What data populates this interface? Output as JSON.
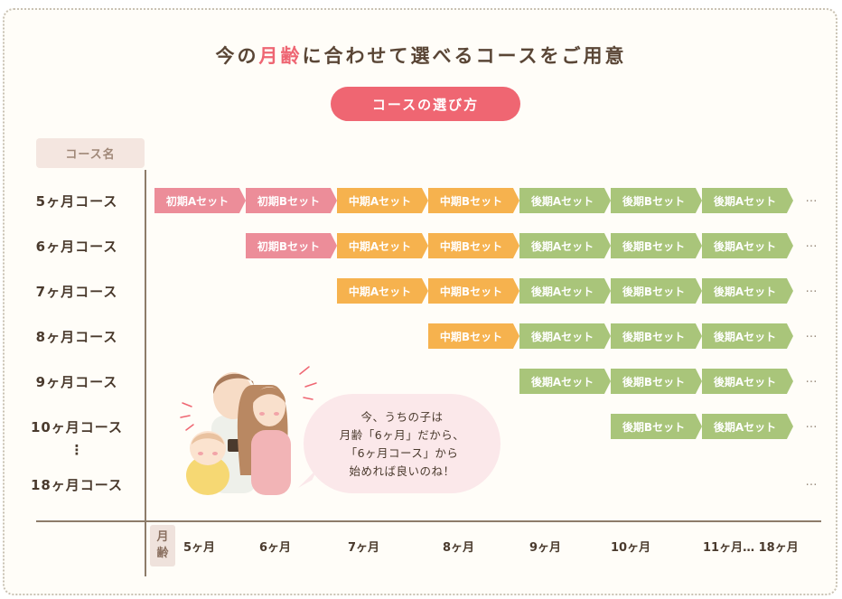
{
  "title": {
    "pre": "今の",
    "accent": "月齢",
    "post": "に合わせて選べるコースをご用意"
  },
  "pill_label": "コースの選び方",
  "course_header": "コース名",
  "rows": [
    {
      "label": "5ヶ月コース",
      "sets": [
        {
          "label": "初期Aセット",
          "color": "pink",
          "col": 0
        },
        {
          "label": "初期Bセット",
          "color": "pink",
          "col": 1
        },
        {
          "label": "中期Aセット",
          "color": "orange",
          "col": 2
        },
        {
          "label": "中期Bセット",
          "color": "orange",
          "col": 3
        },
        {
          "label": "後期Aセット",
          "color": "green",
          "col": 4
        },
        {
          "label": "後期Bセット",
          "color": "green",
          "col": 5
        },
        {
          "label": "後期Aセット",
          "color": "green",
          "col": 6
        }
      ]
    },
    {
      "label": "6ヶ月コース",
      "sets": [
        {
          "label": "初期Bセット",
          "color": "pink",
          "col": 1
        },
        {
          "label": "中期Aセット",
          "color": "orange",
          "col": 2
        },
        {
          "label": "中期Bセット",
          "color": "orange",
          "col": 3
        },
        {
          "label": "後期Aセット",
          "color": "green",
          "col": 4
        },
        {
          "label": "後期Bセット",
          "color": "green",
          "col": 5
        },
        {
          "label": "後期Aセット",
          "color": "green",
          "col": 6
        }
      ]
    },
    {
      "label": "7ヶ月コース",
      "sets": [
        {
          "label": "中期Aセット",
          "color": "orange",
          "col": 2
        },
        {
          "label": "中期Bセット",
          "color": "orange",
          "col": 3
        },
        {
          "label": "後期Aセット",
          "color": "green",
          "col": 4
        },
        {
          "label": "後期Bセット",
          "color": "green",
          "col": 5
        },
        {
          "label": "後期Aセット",
          "color": "green",
          "col": 6
        }
      ]
    },
    {
      "label": "8ヶ月コース",
      "sets": [
        {
          "label": "中期Bセット",
          "color": "orange",
          "col": 3
        },
        {
          "label": "後期Aセット",
          "color": "green",
          "col": 4
        },
        {
          "label": "後期Bセット",
          "color": "green",
          "col": 5
        },
        {
          "label": "後期Aセット",
          "color": "green",
          "col": 6
        }
      ]
    },
    {
      "label": "9ヶ月コース",
      "sets": [
        {
          "label": "後期Aセット",
          "color": "green",
          "col": 4
        },
        {
          "label": "後期Bセット",
          "color": "green",
          "col": 5
        },
        {
          "label": "後期Aセット",
          "color": "green",
          "col": 6
        }
      ]
    },
    {
      "label": "10ヶ月コース",
      "sets": [
        {
          "label": "後期Bセット",
          "color": "green",
          "col": 5
        },
        {
          "label": "後期Aセット",
          "color": "green",
          "col": 6
        }
      ]
    },
    {
      "label": "18ヶ月コース",
      "sets": []
    }
  ],
  "vertical_ellipsis": "⋮",
  "row_ellipsis": "…",
  "month_axis": {
    "badge": [
      "月",
      "齢"
    ],
    "labels": [
      "5ヶ月",
      "6ヶ月",
      "7ヶ月",
      "8ヶ月",
      "9ヶ月",
      "10ヶ月",
      "11ヶ月… 18ヶ月"
    ]
  },
  "bubble_lines": [
    "今、うちの子は",
    "月齢「6ヶ月」だから、",
    "「6ヶ月コース」から",
    "始めれば良いのね！"
  ],
  "colors": {
    "pink": "#ec8d99",
    "orange": "#f6b24e",
    "green": "#a9c57a",
    "accent": "#ef6672"
  }
}
